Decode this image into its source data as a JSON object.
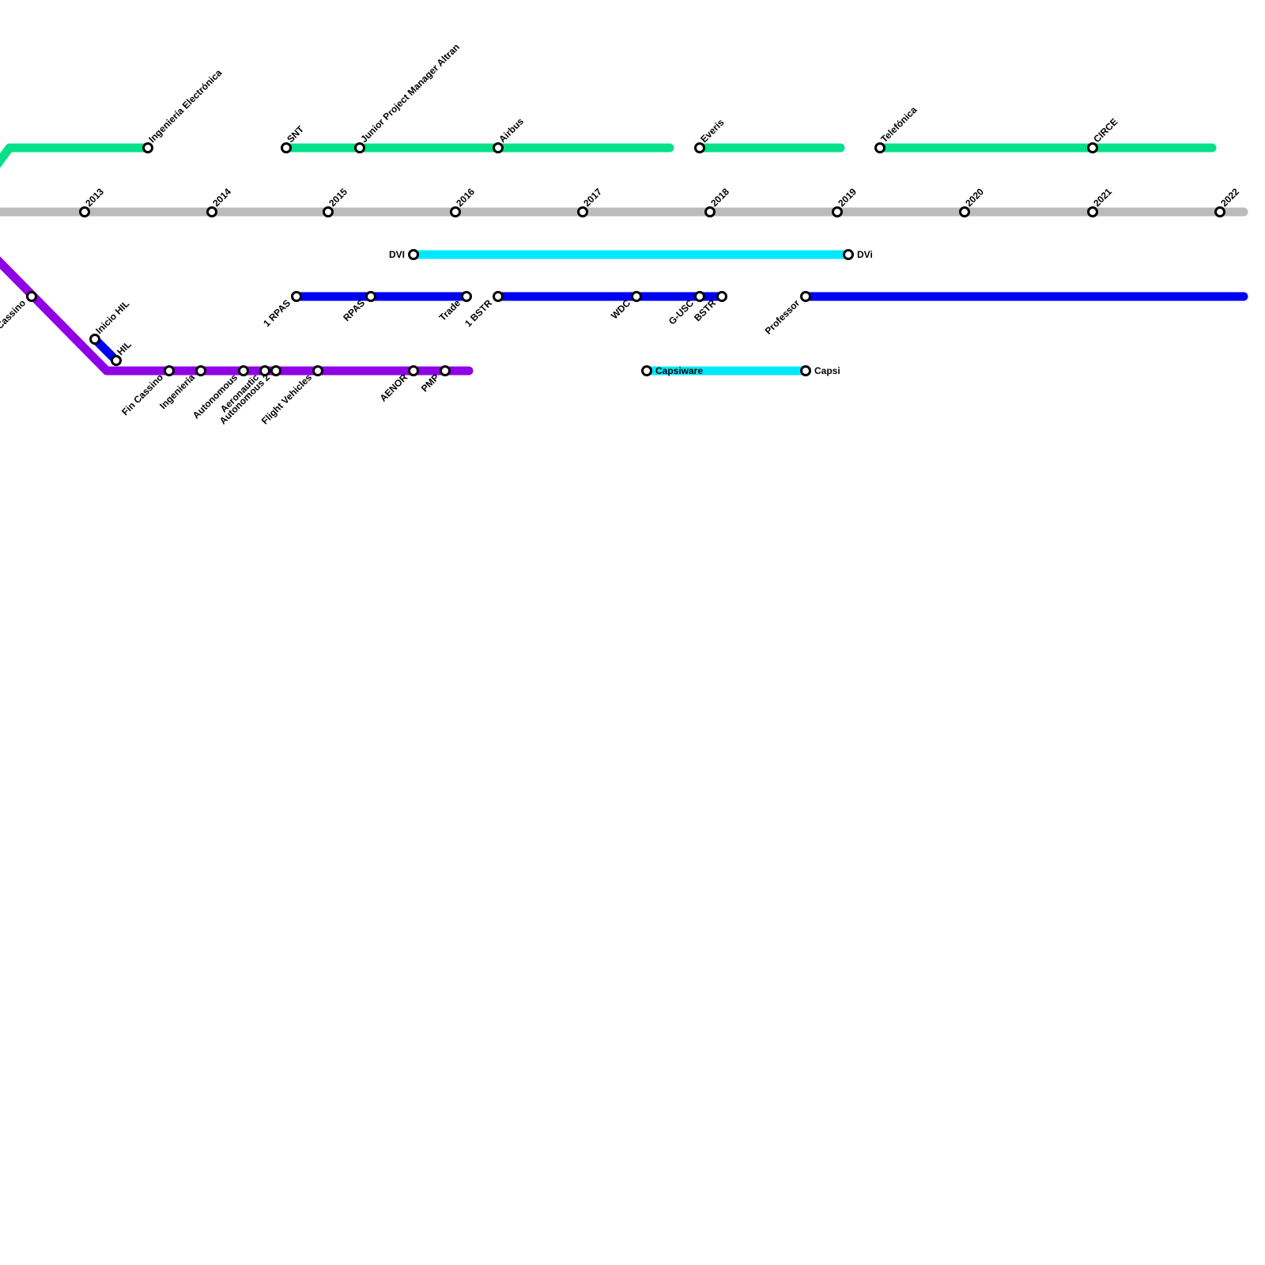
{
  "stations": [
    {
      "label": "Ingeniería Electrónica"
    },
    {
      "label": "SNT"
    },
    {
      "label": "Junior Project Manager Altran"
    },
    {
      "label": "Airbus"
    },
    {
      "label": "Everis"
    },
    {
      "label": "Telefónica"
    },
    {
      "label": "CIRCE"
    },
    {
      "label": "2013"
    },
    {
      "label": "2014"
    },
    {
      "label": "2015"
    },
    {
      "label": "2016"
    },
    {
      "label": "2017"
    },
    {
      "label": "2018"
    },
    {
      "label": "2019"
    },
    {
      "label": "2020"
    },
    {
      "label": "2021"
    },
    {
      "label": "2022"
    },
    {
      "label": "DVI"
    },
    {
      "label": "DVi"
    },
    {
      "label": "Capsiware"
    },
    {
      "label": "Capsi"
    },
    {
      "label": "1 RPAS"
    },
    {
      "label": "RPAS"
    },
    {
      "label": "Trade"
    },
    {
      "label": "1 BSTR"
    },
    {
      "label": "WDC"
    },
    {
      "label": "G-USC"
    },
    {
      "label": "BSTR"
    },
    {
      "label": "Professor"
    },
    {
      "label": "Inicio HIL"
    },
    {
      "label": "HIL"
    },
    {
      "label": "Cassino"
    },
    {
      "label": "Fin Cassino"
    },
    {
      "label": "Ingeniería"
    },
    {
      "label": "Autonomous"
    },
    {
      "label": "Aeronautic"
    },
    {
      "label": "Autonomous 2"
    },
    {
      "label": "Flight Vehicles"
    },
    {
      "label": "AENOR"
    },
    {
      "label": "PMP"
    }
  ]
}
